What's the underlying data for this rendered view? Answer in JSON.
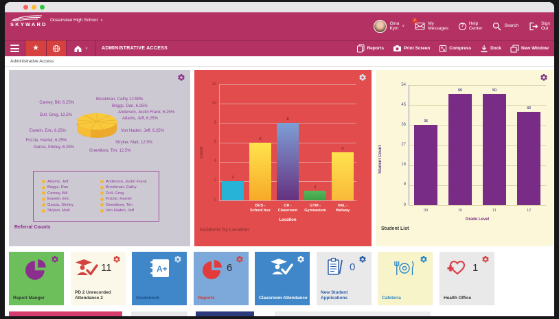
{
  "header": {
    "brand": "SKYWARD",
    "school": "Oceanview High School",
    "user_lines": [
      "Gina",
      "Kym"
    ],
    "messages_badge": "2",
    "my_messages_lines": [
      "My",
      "Messages"
    ],
    "help_lines": [
      "Help",
      "Center"
    ],
    "search_label": "Search",
    "signout_lines": [
      "Sign",
      "Out"
    ]
  },
  "toolbar": {
    "title": "ADMINISTRATIVE ACCESS",
    "actions": [
      {
        "label": "Reports"
      },
      {
        "label": "Print Screen"
      },
      {
        "label": "Compress"
      },
      {
        "label": "Dock"
      },
      {
        "label": "New Window"
      }
    ]
  },
  "breadcrumb": "Administrative Access",
  "widgets": {
    "referral": {
      "title": "Referral Counts",
      "callouts": [
        "Carney, Bill, 6.25%",
        "Dull, Greg, 12.5%",
        "Eswein, Eric, 6.25%",
        "Frizzle, Harriet, 6.25%",
        "Garcia, Shirley, 6.25%",
        "Brookman, Cathy 12.59%",
        "Briggs, Dan, 6.25%",
        "Anderson, Justin Frank, 6.25%",
        "Adams, Jeff, 6.25%",
        "Von Haden, Jeff, 6.25%",
        "Stryker, Matt, 12.5%",
        "Gnewikow, Tim, 12.5%"
      ],
      "legend_cols": [
        [
          "Adams, Jeff",
          "Briggs, Dan",
          "Carney, Bill",
          "Eswein, Eric",
          "Garcia, Shirley",
          "Stryker, Matt"
        ],
        [
          "Anderson, Justin Frank",
          "Brookman, Cathy",
          "Dull, Greg",
          "Frizzle, Harriet",
          "Gnewikow, Tim",
          "Von Haden, Jeff"
        ]
      ]
    },
    "incidents": {
      "title": "Incidents by Location"
    },
    "students": {
      "title": "Student List"
    }
  },
  "chart_data": [
    {
      "id": "referral_counts_pie",
      "type": "pie",
      "title": "Referral Counts",
      "labels": [
        "Adams, Jeff",
        "Anderson, Justin Frank",
        "Briggs, Dan",
        "Brookman, Cathy",
        "Carney, Bill",
        "Dull, Greg",
        "Eswein, Eric",
        "Frizzle, Harriet",
        "Garcia, Shirley",
        "Gnewikow, Tim",
        "Stryker, Matt",
        "Von Haden, Jeff"
      ],
      "values_pct": [
        6.25,
        6.25,
        6.25,
        12.59,
        6.25,
        12.5,
        6.25,
        6.25,
        6.25,
        12.5,
        12.5,
        6.25
      ],
      "slice_color": "#f9c93c",
      "legend_position": "bottom"
    },
    {
      "id": "incidents_by_location",
      "type": "bar",
      "title": "Incidents by Location",
      "xlabel": "Location",
      "ylabel": "Count",
      "ylim": [
        0,
        12
      ],
      "yticks": [
        0,
        2,
        4,
        6,
        8,
        10,
        12
      ],
      "categories": [
        "",
        "BUS - School bus",
        "CR - Classroom",
        "GYM - Gymnasium",
        "HAL - Hallway"
      ],
      "values": [
        2,
        6,
        8,
        1,
        5
      ],
      "bar_colors": [
        [
          "#26b3d7",
          "#26b3d7"
        ],
        [
          "#ffe34d",
          "#f7a928"
        ],
        [
          "#7d9fd6",
          "#66317f"
        ],
        [
          "#55b85a",
          "#3f9f46"
        ],
        [
          "#ffe34d",
          "#f9b93a"
        ]
      ],
      "grid": true
    },
    {
      "id": "student_list_by_grade",
      "type": "bar",
      "title": "Student List",
      "xlabel": "Grade Level",
      "ylabel": "Student Count",
      "ylim": [
        0,
        54
      ],
      "yticks": [
        0,
        9,
        18,
        27,
        36,
        45,
        54
      ],
      "categories": [
        "09",
        "10",
        "11",
        "12"
      ],
      "values": [
        36,
        50,
        50,
        42
      ],
      "bar_colors": [
        [
          "#792c85",
          "#792c85"
        ],
        [
          "#792c85",
          "#792c85"
        ],
        [
          "#792c85",
          "#792c85"
        ],
        [
          "#792c85",
          "#792c85"
        ]
      ],
      "grid": true
    }
  ],
  "tiles": [
    {
      "label": "Report Manger"
    },
    {
      "label": "PD 2 Unrecorded Attendance 2",
      "count": "11"
    },
    {
      "label": "Gradebook",
      "icon_text": "A+"
    },
    {
      "label": "Reports",
      "count": "6"
    },
    {
      "label": "Classroom Attendance"
    },
    {
      "label": "New Student Applications",
      "count": "0"
    },
    {
      "label": "Cafeteria"
    },
    {
      "label": "Health Office",
      "count": "1"
    }
  ],
  "colors": {
    "header_pink": "#b43263",
    "button_red": "#d5413e",
    "incidents_bg": "#e24c4c",
    "students_bg": "#fbf7d8",
    "referral_bg": "#cdc9d3",
    "student_bar": "#792c85"
  }
}
